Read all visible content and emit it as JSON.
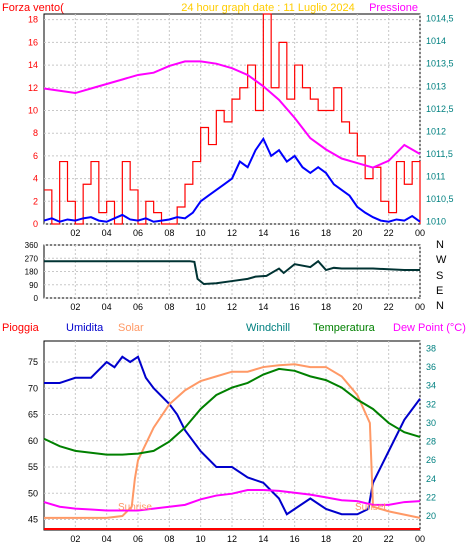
{
  "title": "24 hour graph date : 11 Luglio 2024",
  "colors": {
    "wind_gust": "#ff0000",
    "wind_avg": "#0000ff",
    "pressure": "#ff00ff",
    "direction": "#003333",
    "humidity": "#0000cc",
    "solar": "#ff9966",
    "temperature": "#008000",
    "dewpoint": "#ff00ff",
    "rain": "#ff0000",
    "left_axis": "#ff0000",
    "right_axis": "#008080",
    "title": "#ffcc00"
  },
  "chart_data": [
    {
      "type": "line",
      "ylabel_left": "Forza vento(",
      "ylabel_right": "Pressione",
      "x_ticks": [
        "02",
        "04",
        "06",
        "08",
        "10",
        "12",
        "14",
        "16",
        "18",
        "20",
        "22",
        "00"
      ],
      "y_left_ticks": [
        "0",
        "2",
        "4",
        "6",
        "8",
        "10",
        "12",
        "14",
        "16",
        "18"
      ],
      "y_right_ticks": [
        "1010",
        "1010,5",
        "1011",
        "1011,5",
        "1012",
        "1012,5",
        "1013",
        "1013,5",
        "1014",
        "1014,5"
      ],
      "y_left_range": [
        0,
        18.5
      ],
      "y_right_range": [
        1009.95,
        1014.6
      ],
      "series": [
        {
          "key": "gust",
          "axis": "left",
          "style": "step",
          "x": [
            0,
            0.5,
            1,
            1.5,
            2,
            2.5,
            3,
            3.5,
            4,
            4.5,
            5,
            5.5,
            6,
            6.5,
            7,
            7.5,
            8,
            8.5,
            9,
            9.5,
            10,
            10.5,
            11,
            11.5,
            12,
            12.5,
            13,
            13.5,
            14,
            14.5,
            15,
            15.5,
            16,
            16.5,
            17,
            17.5,
            18,
            18.5,
            19,
            19.5,
            20,
            20.5,
            21,
            21.5,
            22,
            22.5,
            23,
            23.5,
            24
          ],
          "y": [
            3,
            0,
            5.5,
            2,
            0,
            3.5,
            5.5,
            1,
            2,
            0,
            5.5,
            3,
            0,
            2,
            1,
            0,
            0,
            1.5,
            3.5,
            5.5,
            8.5,
            7,
            10,
            9,
            11,
            12,
            14,
            10,
            18.5,
            12,
            16,
            11,
            14,
            12,
            11,
            10,
            10,
            12,
            9,
            8,
            6,
            4,
            5,
            2,
            1,
            5.5,
            3.5,
            5.5,
            0
          ]
        },
        {
          "key": "avg",
          "axis": "left",
          "style": "line",
          "x": [
            0,
            0.5,
            1,
            1.5,
            2,
            2.5,
            3,
            3.5,
            4,
            4.5,
            5,
            5.5,
            6,
            6.5,
            7,
            7.5,
            8,
            8.5,
            9,
            9.5,
            10,
            10.5,
            11,
            11.5,
            12,
            12.5,
            13,
            13.5,
            14,
            14.5,
            15,
            15.5,
            16,
            16.5,
            17,
            17.5,
            18,
            18.5,
            19,
            19.5,
            20,
            20.5,
            21,
            21.5,
            22,
            22.5,
            23,
            23.5,
            24
          ],
          "y": [
            0.3,
            0.5,
            0.2,
            0.4,
            0.3,
            0.5,
            0.6,
            0.3,
            0.2,
            0.5,
            0.8,
            0.4,
            0.3,
            0.5,
            0.2,
            0.3,
            0.4,
            0.6,
            0.5,
            1,
            2,
            2.5,
            3,
            3.5,
            4,
            5.5,
            5,
            6.5,
            7.5,
            6,
            6.5,
            5.5,
            6,
            5,
            4.5,
            5,
            4.5,
            3.5,
            3,
            2.5,
            1.5,
            1,
            0.6,
            0.3,
            0.2,
            0.4,
            0.3,
            0.7,
            0.2
          ]
        },
        {
          "key": "pressure",
          "axis": "right",
          "style": "line",
          "x": [
            0,
            1,
            2,
            3,
            4,
            5,
            6,
            7,
            8,
            9,
            10,
            11,
            12,
            13,
            14,
            15,
            16,
            17,
            18,
            19,
            20,
            21,
            22,
            23,
            24
          ],
          "y": [
            1012.95,
            1012.9,
            1012.85,
            1012.95,
            1013.05,
            1013.15,
            1013.25,
            1013.3,
            1013.45,
            1013.55,
            1013.55,
            1013.5,
            1013.4,
            1013.25,
            1013,
            1012.7,
            1012.3,
            1011.85,
            1011.6,
            1011.4,
            1011.3,
            1011.2,
            1011.35,
            1011.7,
            1011.5
          ]
        }
      ]
    },
    {
      "type": "line",
      "ylabel_right": [
        "N",
        "W",
        "S",
        "E",
        "N"
      ],
      "x_ticks": [
        "02",
        "04",
        "06",
        "08",
        "10",
        "12",
        "14",
        "16",
        "18",
        "20",
        "22",
        "00"
      ],
      "y_left_ticks": [
        "0",
        "90",
        "180",
        "270",
        "360"
      ],
      "y_range": [
        0,
        360
      ],
      "series": [
        {
          "key": "direction",
          "x": [
            0,
            2,
            4,
            6,
            8,
            9.3,
            9.6,
            9.8,
            10.2,
            11,
            12,
            13,
            13.5,
            14.2,
            15,
            15.3,
            16,
            17,
            17.5,
            18,
            18.5,
            19,
            20,
            21,
            22,
            23,
            24
          ],
          "y": [
            250,
            250,
            250,
            250,
            250,
            250,
            245,
            130,
            95,
            100,
            115,
            130,
            145,
            150,
            200,
            170,
            230,
            210,
            250,
            190,
            205,
            200,
            200,
            200,
            195,
            190,
            190
          ]
        }
      ]
    },
    {
      "type": "line",
      "legend": [
        "Pioggia",
        "Umidita",
        "Solar",
        "Windchill",
        "Temperatura",
        "Dew Point (°C)"
      ],
      "x_ticks": [
        "02",
        "04",
        "06",
        "08",
        "10",
        "12",
        "14",
        "16",
        "18",
        "20",
        "22",
        "00"
      ],
      "y_left_ticks": [
        "45",
        "50",
        "55",
        "60",
        "65",
        "70",
        "75"
      ],
      "y_right_ticks": [
        "20",
        "22",
        "24",
        "26",
        "28",
        "30",
        "32",
        "34",
        "36",
        "38"
      ],
      "y_left_range": [
        43,
        79
      ],
      "y_right_range": [
        18.5,
        38.8
      ],
      "annotations": [
        "Sunrise",
        "Sunset"
      ],
      "series": [
        {
          "key": "humidity",
          "axis": "left",
          "x": [
            0,
            1,
            2,
            3,
            4,
            4.5,
            5,
            5.5,
            6,
            6.5,
            7,
            8,
            8.5,
            9,
            10,
            11,
            12,
            13,
            14,
            15,
            15.5,
            16,
            17,
            18,
            19,
            20,
            20.7,
            21,
            22,
            23,
            24
          ],
          "y": [
            71,
            71,
            72,
            72,
            75,
            74,
            76,
            75,
            76,
            72,
            70,
            67,
            65,
            62,
            58,
            55,
            55,
            53,
            52,
            49,
            46,
            47,
            49,
            47,
            46,
            46,
            47,
            52,
            58,
            64,
            68
          ]
        },
        {
          "key": "solar",
          "axis": "right",
          "x": [
            0,
            4,
            5,
            5.6,
            5.8,
            6,
            7,
            8,
            9,
            10,
            11,
            12,
            13,
            14,
            15,
            16,
            17,
            18,
            19,
            20,
            20.8,
            21,
            22,
            24
          ],
          "y": [
            19.8,
            19.8,
            20,
            21,
            24,
            26,
            29.5,
            32,
            33.5,
            34.5,
            35,
            35.5,
            35.5,
            36,
            36.2,
            36.3,
            36,
            36,
            35,
            33,
            30,
            21,
            20.5,
            19.8
          ]
        },
        {
          "key": "temperature",
          "axis": "right",
          "x": [
            0,
            1,
            2,
            3,
            4,
            5,
            6,
            7,
            8,
            9,
            10,
            11,
            12,
            13,
            14,
            15,
            16,
            17,
            18,
            19,
            20,
            21,
            22,
            23,
            24
          ],
          "y": [
            28.3,
            27.5,
            27,
            26.8,
            26.6,
            26.6,
            26.7,
            27,
            28,
            29.5,
            31.5,
            33,
            33.8,
            34.3,
            35.2,
            35.8,
            35.6,
            35,
            34.6,
            33.8,
            32.5,
            31.5,
            30,
            29,
            28.5
          ]
        },
        {
          "key": "dewpoint",
          "axis": "right",
          "x": [
            0,
            1,
            2,
            3,
            4,
            5,
            6,
            7,
            8,
            9,
            10,
            11,
            12,
            13,
            14,
            15,
            16,
            17,
            18,
            19,
            20,
            21,
            22,
            23,
            24
          ],
          "y": [
            21.5,
            21,
            20.8,
            20.7,
            20.6,
            20.6,
            20.6,
            20.8,
            21,
            21.2,
            21.8,
            22.2,
            22.4,
            22.8,
            22.8,
            22.7,
            22.5,
            22.3,
            22,
            21.7,
            21.6,
            21.2,
            21.2,
            21.5,
            21.6
          ]
        },
        {
          "key": "rain",
          "axis": "left",
          "x": [
            0,
            24
          ],
          "y": [
            43.2,
            43.2
          ]
        }
      ]
    }
  ]
}
